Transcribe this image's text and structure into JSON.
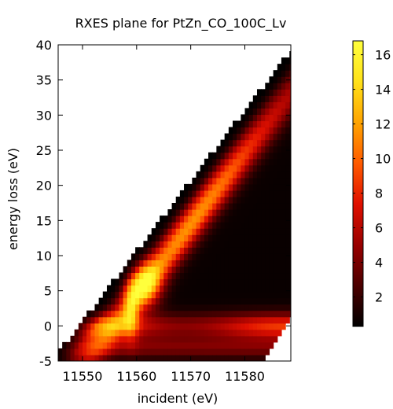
{
  "chart_data": {
    "type": "heatmap",
    "title": "RXES plane for PtZn_CO_100C_Lv",
    "xlabel": "incident (eV)",
    "ylabel": "energy loss (eV)",
    "xlim": [
      11545.5,
      11588.5
    ],
    "ylim": [
      -5,
      40
    ],
    "x_ticks": [
      11550,
      11560,
      11570,
      11580
    ],
    "x_tick_labels": [
      "11550",
      "11560",
      "11570",
      "11580"
    ],
    "y_ticks": [
      -5,
      0,
      5,
      10,
      15,
      20,
      25,
      30,
      35,
      40
    ],
    "y_tick_labels": [
      "-5",
      "0",
      "5",
      "10",
      "15",
      "20",
      "25",
      "30",
      "35",
      "40"
    ],
    "colorbar": {
      "range": [
        0.3,
        16.8
      ],
      "ticks": [
        2,
        4,
        6,
        8,
        10,
        12,
        14,
        16
      ],
      "tick_labels": [
        "2",
        "4",
        "6",
        "8",
        "10",
        "12",
        "14",
        "16"
      ],
      "colormap": [
        "#000000",
        "#4a0000",
        "#960000",
        "#e01000",
        "#ff5a00",
        "#ffa200",
        "#ffe21a",
        "#ffff3c"
      ]
    },
    "data_region": {
      "description_fields": "intensity map over incident energy vs energy loss",
      "incident_range": [
        11545.5,
        11588.5
      ],
      "energy_loss_min": -5,
      "features": [
        {
          "name": "elastic_band",
          "energy_loss": 0,
          "width": 1.8,
          "peak_intensity": 8
        },
        {
          "name": "main_resonance",
          "incident": 11561.5,
          "energy_loss": 6,
          "peak_intensity": 16.5
        },
        {
          "name": "fluorescence_diagonal",
          "slope": 1.0,
          "offset": 11555.5,
          "peak_intensity": 11
        }
      ]
    }
  }
}
